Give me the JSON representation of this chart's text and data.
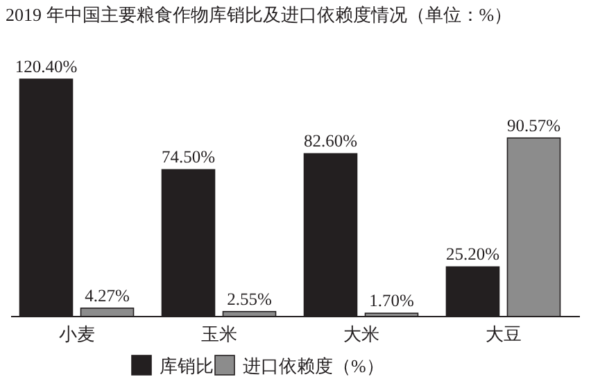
{
  "chart_data": {
    "type": "bar",
    "title": "2019 年中国主要粮食作物库销比及进口依赖度情况（单位：%）",
    "categories": [
      "小麦",
      "玉米",
      "大米",
      "大豆"
    ],
    "series": [
      {
        "name": "库销比",
        "color": "#231f20",
        "values": [
          120.4,
          74.5,
          82.6,
          25.2
        ],
        "value_labels": [
          "120.40%",
          "74.50%",
          "82.60%",
          "25.20%"
        ]
      },
      {
        "name": "进口依赖度（%）",
        "color": "#8c8c8c",
        "values": [
          4.27,
          2.55,
          1.7,
          90.57
        ],
        "value_labels": [
          "4.27%",
          "2.55%",
          "1.70%",
          "90.57%"
        ]
      }
    ],
    "legend": "bottom"
  }
}
